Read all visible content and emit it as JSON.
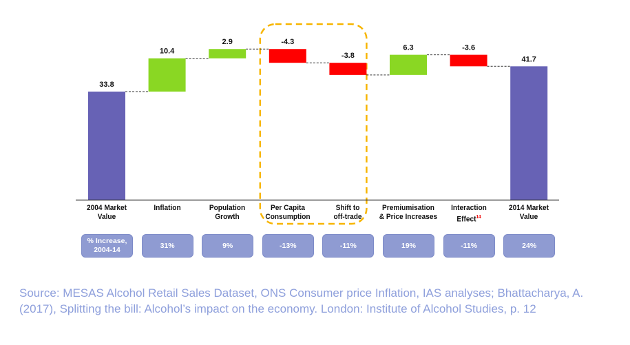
{
  "chart_data": {
    "type": "waterfall",
    "categories": [
      "2004 Market Value",
      "Inflation",
      "Population Growth",
      "Per Capita Consumption",
      "Shift to off-trade",
      "Premiumisation & Price Increases",
      "Interaction Effect",
      "2014 Market Value"
    ],
    "category_lines": [
      [
        "2004 Market",
        "Value"
      ],
      [
        "Inflation",
        ""
      ],
      [
        "Population",
        "Growth"
      ],
      [
        "Per Capita",
        "Consumption"
      ],
      [
        "Shift to",
        "off-trade"
      ],
      [
        "Premiumisation",
        "& Price Increases"
      ],
      [
        "Interaction",
        "Effect"
      ],
      [
        "2014 Market",
        "Value"
      ]
    ],
    "footnote_marker": {
      "category_index": 6,
      "text": "14"
    },
    "values": [
      33.8,
      10.4,
      2.9,
      -4.3,
      -3.8,
      6.3,
      -3.6,
      41.7
    ],
    "data_labels": [
      "33.8",
      "10.4",
      "2.9",
      "-4.3",
      "-3.8",
      "6.3",
      "-3.6",
      "41.7"
    ],
    "kinds": [
      "total",
      "delta",
      "delta",
      "delta",
      "delta",
      "delta",
      "delta",
      "total"
    ],
    "colors": {
      "total": "#6762b5",
      "increase": "#8ad723",
      "decrease": "#ff0000",
      "connector": "#333333",
      "highlight_box": "#f7b500"
    },
    "highlighted_categories": [
      "Per Capita Consumption",
      "Shift to off-trade"
    ],
    "percent_increase": {
      "header": "% Increase, 2004-14",
      "values": [
        "31%",
        "9%",
        "-13%",
        "-11%",
        "19%",
        "-11%",
        "24%"
      ]
    },
    "ylim": [
      0,
      47.1
    ],
    "grid": false
  },
  "source": "Source: MESAS Alcohol Retail Sales Dataset, ONS Consumer price Inflation, IAS analyses; Bhattacharya, A. (2017), Splitting the bill: Alcohol’s impact on the economy. London: Institute of Alcohol Studies, p. 12"
}
